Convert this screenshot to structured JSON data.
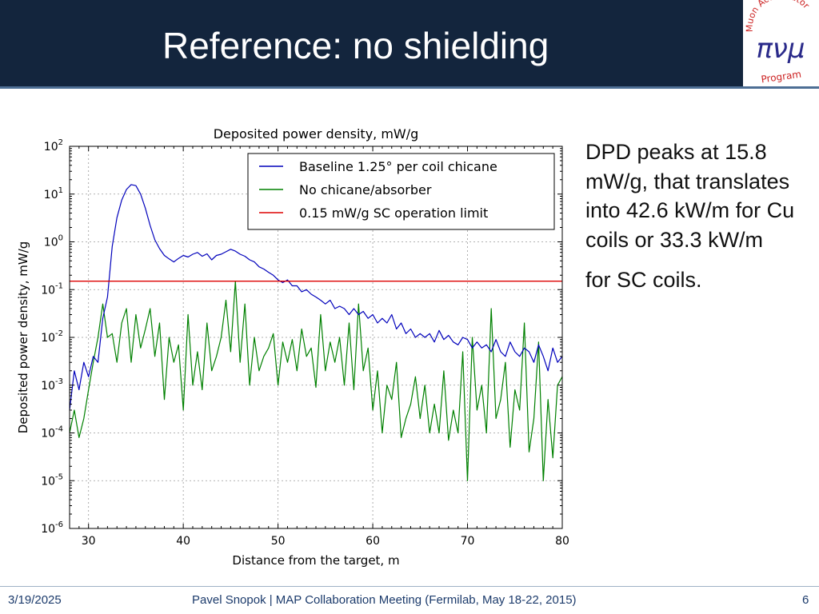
{
  "slide": {
    "title": "Reference: no shielding",
    "logo": {
      "ring_text": "Muon Accelerator",
      "bottom_text": "Program",
      "glyphs": "πνμ"
    }
  },
  "side_text": {
    "paragraph1": "DPD peaks at 15.8 mW/g, that translates into 42.6 kW/m for Cu coils or 33.3 kW/m",
    "paragraph2": "for SC coils."
  },
  "footer": {
    "date": "3/19/2025",
    "center": "Pavel Snopok | MAP Collaboration Meeting (Fermilab, May 18-22, 2015)",
    "page": "6"
  },
  "chart_data": {
    "type": "line",
    "title": "Deposited power density, mW/g",
    "xlabel": "Distance from the target, m",
    "ylabel": "Deposited power density, mW/g",
    "xlim": [
      28,
      80
    ],
    "ylim": [
      1e-06,
      100
    ],
    "yscale": "log",
    "x_ticks": [
      30,
      40,
      50,
      60,
      70,
      80
    ],
    "y_ticks": [
      {
        "exp": "-6",
        "value": 1e-06
      },
      {
        "exp": "-5",
        "value": 1e-05
      },
      {
        "exp": "-4",
        "value": 0.0001
      },
      {
        "exp": "-3",
        "value": 0.001
      },
      {
        "exp": "-2",
        "value": 0.01
      },
      {
        "exp": "-1",
        "value": 0.1
      },
      {
        "exp": "0",
        "value": 1
      },
      {
        "exp": "1",
        "value": 10
      },
      {
        "exp": "2",
        "value": 100
      }
    ],
    "grid": true,
    "legend_position": "top-right",
    "series": [
      {
        "name": "Baseline 1.25° per coil chicane",
        "color": "#0000bb",
        "x": [
          28,
          28.5,
          29,
          29.5,
          30,
          30.5,
          31,
          31.5,
          32,
          32.5,
          33,
          33.5,
          34,
          34.5,
          35,
          35.5,
          36,
          36.5,
          37,
          37.5,
          38,
          38.5,
          39,
          39.5,
          40,
          40.5,
          41,
          41.5,
          42,
          42.5,
          43,
          43.5,
          44,
          44.5,
          45,
          45.5,
          46,
          46.5,
          47,
          47.5,
          48,
          48.5,
          49,
          49.5,
          50,
          50.5,
          51,
          51.5,
          52,
          52.5,
          53,
          53.5,
          54,
          54.5,
          55,
          55.5,
          56,
          56.5,
          57,
          57.5,
          58,
          58.5,
          59,
          59.5,
          60,
          60.5,
          61,
          61.5,
          62,
          62.5,
          63,
          63.5,
          64,
          64.5,
          65,
          65.5,
          66,
          66.5,
          67,
          67.5,
          68,
          68.5,
          69,
          69.5,
          70,
          70.5,
          71,
          71.5,
          72,
          72.5,
          73,
          73.5,
          74,
          74.5,
          75,
          75.5,
          76,
          76.5,
          77,
          77.5,
          78,
          78.5,
          79,
          79.5,
          80
        ],
        "y": [
          0.0003,
          0.002,
          0.0008,
          0.003,
          0.0015,
          0.004,
          0.003,
          0.025,
          0.07,
          0.8,
          3.2,
          7.5,
          12.5,
          15.8,
          15.0,
          10.0,
          5.0,
          2.2,
          1.1,
          0.72,
          0.52,
          0.44,
          0.38,
          0.45,
          0.52,
          0.48,
          0.55,
          0.6,
          0.5,
          0.56,
          0.42,
          0.52,
          0.55,
          0.62,
          0.7,
          0.64,
          0.55,
          0.5,
          0.42,
          0.38,
          0.3,
          0.27,
          0.23,
          0.2,
          0.16,
          0.14,
          0.16,
          0.12,
          0.12,
          0.09,
          0.1,
          0.08,
          0.07,
          0.06,
          0.05,
          0.06,
          0.04,
          0.045,
          0.04,
          0.03,
          0.04,
          0.03,
          0.035,
          0.025,
          0.03,
          0.02,
          0.025,
          0.02,
          0.03,
          0.015,
          0.02,
          0.012,
          0.015,
          0.01,
          0.012,
          0.01,
          0.012,
          0.008,
          0.014,
          0.009,
          0.011,
          0.008,
          0.007,
          0.01,
          0.009,
          0.006,
          0.008,
          0.006,
          0.007,
          0.005,
          0.009,
          0.005,
          0.004,
          0.008,
          0.005,
          0.004,
          0.006,
          0.005,
          0.003,
          0.007,
          0.004,
          0.002,
          0.006,
          0.003,
          0.004
        ]
      },
      {
        "name": "No chicane/absorber",
        "color": "#008000",
        "x": [
          28,
          28.5,
          29,
          29.5,
          30,
          30.5,
          31,
          31.5,
          32,
          32.5,
          33,
          33.5,
          34,
          34.5,
          35,
          35.5,
          36,
          36.5,
          37,
          37.5,
          38,
          38.5,
          39,
          39.5,
          40,
          40.5,
          41,
          41.5,
          42,
          42.5,
          43,
          43.5,
          44,
          44.5,
          45,
          45.5,
          46,
          46.5,
          47,
          47.5,
          48,
          48.5,
          49,
          49.5,
          50,
          50.5,
          51,
          51.5,
          52,
          52.5,
          53,
          53.5,
          54,
          54.5,
          55,
          55.5,
          56,
          56.5,
          57,
          57.5,
          58,
          58.5,
          59,
          59.5,
          60,
          60.5,
          61,
          61.5,
          62,
          62.5,
          63,
          63.5,
          64,
          64.5,
          65,
          65.5,
          66,
          66.5,
          67,
          67.5,
          68,
          68.5,
          69,
          69.5,
          70,
          70.5,
          71,
          71.5,
          72,
          72.5,
          73,
          73.5,
          74,
          74.5,
          75,
          75.5,
          76,
          76.5,
          77,
          77.5,
          78,
          78.5,
          79,
          79.5,
          80
        ],
        "y": [
          0.0001,
          0.0003,
          8e-05,
          0.0002,
          0.0008,
          0.003,
          0.01,
          0.05,
          0.01,
          0.012,
          0.003,
          0.02,
          0.04,
          0.003,
          0.03,
          0.006,
          0.015,
          0.04,
          0.004,
          0.02,
          0.0005,
          0.01,
          0.003,
          0.007,
          0.0003,
          0.03,
          0.001,
          0.005,
          0.0008,
          0.02,
          0.002,
          0.004,
          0.01,
          0.06,
          0.005,
          0.15,
          0.003,
          0.05,
          0.001,
          0.01,
          0.002,
          0.004,
          0.006,
          0.012,
          0.001,
          0.008,
          0.003,
          0.009,
          0.002,
          0.015,
          0.004,
          0.006,
          0.0009,
          0.03,
          0.002,
          0.008,
          0.003,
          0.01,
          0.001,
          0.02,
          0.0008,
          0.05,
          0.002,
          0.006,
          0.0003,
          0.002,
          0.0001,
          0.001,
          0.0005,
          0.003,
          8e-05,
          0.0002,
          0.0004,
          0.0015,
          0.0002,
          0.001,
          0.0001,
          0.0004,
          0.0001,
          0.002,
          7e-05,
          0.0003,
          0.0001,
          0.005,
          1e-05,
          0.01,
          0.0003,
          0.001,
          0.0001,
          0.04,
          0.0002,
          0.0005,
          0.003,
          5e-05,
          0.0008,
          0.0003,
          0.02,
          4e-05,
          0.0002,
          0.008,
          1e-05,
          0.0005,
          3e-05,
          0.001,
          0.0015
        ]
      },
      {
        "name": "0.15 mW/g SC operation limit",
        "color": "#dd0000",
        "x": [
          28,
          80
        ],
        "y": [
          0.15,
          0.15
        ]
      }
    ]
  }
}
